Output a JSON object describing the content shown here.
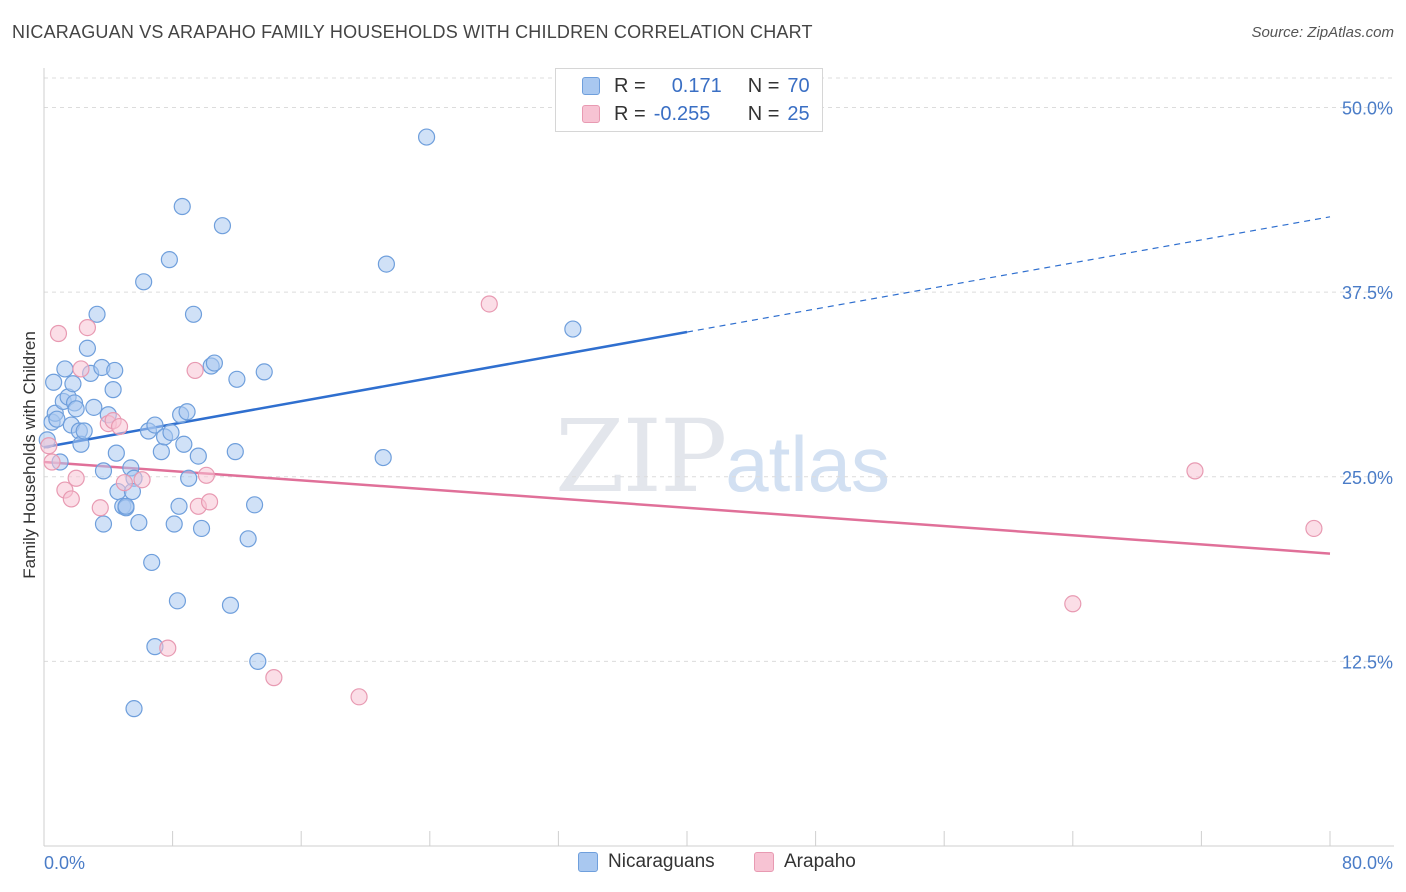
{
  "title": "NICARAGUAN VS ARAPAHO FAMILY HOUSEHOLDS WITH CHILDREN CORRELATION CHART",
  "source": "Source: ZipAtlas.com",
  "watermark": {
    "zip": "ZIP",
    "atlas": "atlas"
  },
  "legend_top": [
    {
      "r_label": "R =",
      "r_value": "0.171",
      "n_label": "N =",
      "n_value": "70",
      "color": "#a9c8f0",
      "border": "#6f9fdc"
    },
    {
      "r_label": "R =",
      "r_value": "-0.255",
      "n_label": "N =",
      "n_value": "25",
      "color": "#f7c3d3",
      "border": "#e89ab2"
    }
  ],
  "legend_bottom": [
    "Nicaraguans",
    "Arapaho"
  ],
  "chart_data": {
    "type": "scatter",
    "title": "NICARAGUAN VS ARAPAHO FAMILY HOUSEHOLDS WITH CHILDREN CORRELATION CHART",
    "xlabel": "",
    "ylabel": "Family Households with Children",
    "xlim": [
      0,
      80
    ],
    "ylim": [
      0,
      52
    ],
    "x_tick_labels": [
      "0.0%",
      "80.0%"
    ],
    "y_ticks": [
      12.5,
      25.0,
      37.5,
      50.0
    ],
    "y_tick_labels": [
      "12.5%",
      "25.0%",
      "37.5%",
      "50.0%"
    ],
    "colors": {
      "blue": "#6f9fdc",
      "blue_fill": "#a9c8f0",
      "blue_line": "#2f6fcf",
      "pink": "#e89ab2",
      "pink_fill": "#f7c3d3",
      "pink_line": "#e07099",
      "grid": "#dcdcdc"
    },
    "series": [
      {
        "name": "Nicaraguans",
        "points": [
          [
            0.2,
            27.5
          ],
          [
            0.5,
            28.7
          ],
          [
            0.6,
            31.4
          ],
          [
            0.7,
            29.3
          ],
          [
            0.8,
            28.9
          ],
          [
            1.0,
            26.0
          ],
          [
            1.2,
            30.1
          ],
          [
            1.3,
            32.3
          ],
          [
            1.5,
            30.4
          ],
          [
            1.7,
            28.5
          ],
          [
            1.8,
            31.3
          ],
          [
            1.9,
            30.0
          ],
          [
            2.0,
            29.6
          ],
          [
            2.2,
            28.1
          ],
          [
            2.3,
            27.2
          ],
          [
            2.5,
            28.1
          ],
          [
            2.7,
            33.7
          ],
          [
            2.9,
            32.0
          ],
          [
            3.1,
            29.7
          ],
          [
            3.3,
            36.0
          ],
          [
            3.6,
            32.4
          ],
          [
            3.7,
            25.4
          ],
          [
            4.0,
            29.2
          ],
          [
            4.3,
            30.9
          ],
          [
            4.4,
            32.2
          ],
          [
            4.5,
            26.6
          ],
          [
            4.6,
            24.0
          ],
          [
            4.9,
            23.0
          ],
          [
            5.4,
            25.6
          ],
          [
            5.6,
            24.9
          ],
          [
            5.9,
            21.9
          ],
          [
            6.2,
            38.2
          ],
          [
            6.5,
            28.1
          ],
          [
            6.7,
            19.2
          ],
          [
            6.9,
            28.5
          ],
          [
            7.3,
            26.7
          ],
          [
            7.5,
            27.7
          ],
          [
            7.8,
            39.7
          ],
          [
            7.9,
            28.0
          ],
          [
            8.1,
            21.8
          ],
          [
            8.3,
            16.6
          ],
          [
            8.5,
            29.2
          ],
          [
            8.6,
            43.3
          ],
          [
            8.7,
            27.2
          ],
          [
            8.9,
            29.4
          ],
          [
            9.0,
            24.9
          ],
          [
            9.3,
            36.0
          ],
          [
            9.6,
            26.4
          ],
          [
            9.8,
            21.5
          ],
          [
            10.4,
            32.5
          ],
          [
            10.6,
            32.7
          ],
          [
            11.1,
            42.0
          ],
          [
            11.6,
            16.3
          ],
          [
            11.9,
            26.7
          ],
          [
            12.0,
            31.6
          ],
          [
            12.7,
            20.8
          ],
          [
            13.1,
            23.1
          ],
          [
            13.3,
            12.5
          ],
          [
            13.7,
            32.1
          ],
          [
            21.1,
            26.3
          ],
          [
            21.3,
            39.4
          ],
          [
            23.8,
            48.0
          ],
          [
            32.9,
            35.0
          ],
          [
            5.1,
            22.9
          ],
          [
            5.1,
            23.0
          ],
          [
            5.5,
            24.0
          ],
          [
            6.9,
            13.5
          ],
          [
            8.4,
            23.0
          ],
          [
            3.7,
            21.8
          ],
          [
            5.6,
            9.3
          ]
        ]
      },
      {
        "name": "Arapaho",
        "points": [
          [
            0.3,
            27.1
          ],
          [
            0.5,
            26.0
          ],
          [
            0.9,
            34.7
          ],
          [
            1.3,
            24.1
          ],
          [
            1.7,
            23.5
          ],
          [
            2.0,
            24.9
          ],
          [
            2.3,
            32.3
          ],
          [
            2.7,
            35.1
          ],
          [
            3.5,
            22.9
          ],
          [
            4.0,
            28.6
          ],
          [
            4.3,
            28.8
          ],
          [
            4.7,
            28.4
          ],
          [
            5.0,
            24.6
          ],
          [
            6.1,
            24.8
          ],
          [
            7.7,
            13.4
          ],
          [
            9.4,
            32.2
          ],
          [
            9.6,
            23.0
          ],
          [
            10.1,
            25.1
          ],
          [
            10.3,
            23.3
          ],
          [
            14.3,
            11.4
          ],
          [
            19.6,
            10.1
          ],
          [
            27.7,
            36.7
          ],
          [
            64.0,
            16.4
          ],
          [
            71.6,
            25.4
          ],
          [
            79.0,
            21.5
          ]
        ]
      }
    ],
    "trendlines": [
      {
        "series": "Nicaraguans",
        "x": [
          0,
          40
        ],
        "y": [
          27.0,
          34.8
        ],
        "dashed_x": [
          40,
          80
        ],
        "dashed_y": [
          34.8,
          42.6
        ]
      },
      {
        "series": "Arapaho",
        "x": [
          0,
          80
        ],
        "y": [
          26.0,
          19.8
        ]
      }
    ]
  }
}
